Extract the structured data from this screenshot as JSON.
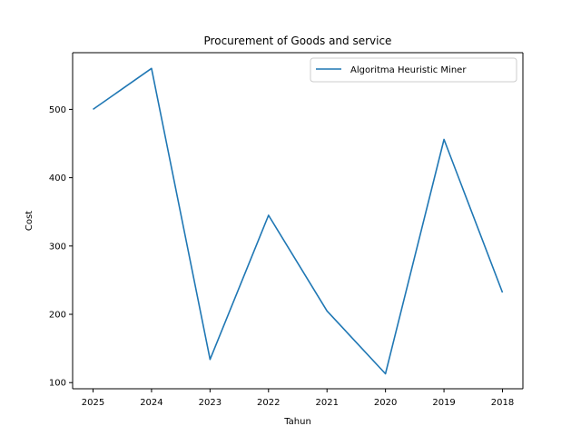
{
  "chart_data": {
    "type": "line",
    "title": "Procurement of Goods and service",
    "xlabel": "Tahun",
    "ylabel": "Cost",
    "categories": [
      "2025",
      "2024",
      "2023",
      "2022",
      "2021",
      "2020",
      "2019",
      "2018"
    ],
    "series": [
      {
        "name": "Algoritma Heuristic Miner",
        "color": "#1f77b4",
        "values": [
          500,
          560,
          134,
          345,
          205,
          113,
          456,
          232
        ]
      }
    ],
    "yticks": [
      100,
      200,
      300,
      400,
      500
    ],
    "ylim": [
      91,
      583
    ],
    "grid": false,
    "legend_position": "upper right"
  }
}
